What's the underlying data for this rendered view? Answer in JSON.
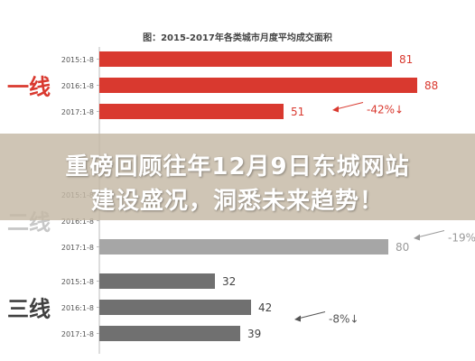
{
  "chart_data": {
    "type": "bar",
    "orientation": "horizontal",
    "title": "图：2015-2017年各类城市月度平均成交面积",
    "categories": [
      "2015:1-8",
      "2016:1-8",
      "2017:1-8"
    ],
    "xlim": [
      0,
      90
    ],
    "groups": [
      {
        "label": "一线",
        "values": [
          81,
          88,
          51
        ],
        "change": "-42%↓",
        "color": "#d9392f",
        "label_color": "#d9392f",
        "change_color": "#d9392f"
      },
      {
        "label": "二线",
        "values": [
          null,
          null,
          80
        ],
        "change": "-19%↓",
        "color": "#a6a6a6",
        "label_color": "#c8c8c8",
        "change_color": "#9a9a9a"
      },
      {
        "label": "三线",
        "values": [
          32,
          42,
          39
        ],
        "change": "-8%↓",
        "color": "#707070",
        "label_color": "#404040",
        "change_color": "#555555"
      }
    ],
    "grid": false,
    "legend": "none"
  },
  "banner": {
    "line1": "重磅回顾往年12月9日东城网站",
    "line2": "建设盛况，洞悉未来趋势！"
  },
  "colors": {
    "title_color": "#444444",
    "axis_color": "#bbbbbb"
  }
}
